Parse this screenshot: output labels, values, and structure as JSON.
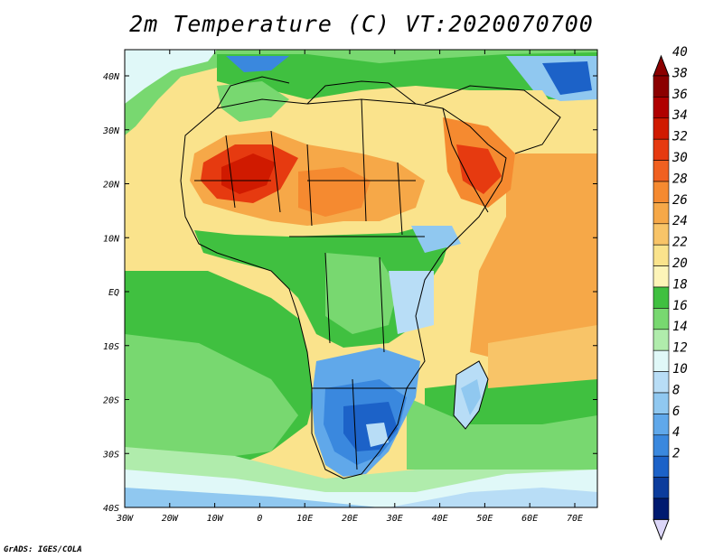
{
  "title": "2m Temperature (C) VT:2020070700",
  "credit": "GrADS: IGES/COLA",
  "map": {
    "lat_ticks": [
      "40N",
      "30N",
      "20N",
      "10N",
      "EQ",
      "10S",
      "20S",
      "30S",
      "40S"
    ],
    "lon_ticks": [
      "30W",
      "20W",
      "10W",
      "0",
      "10E",
      "20E",
      "30E",
      "40E",
      "50E",
      "60E",
      "70E"
    ],
    "lat_range": [
      -40,
      45
    ],
    "lon_range": [
      -30,
      75
    ]
  },
  "colorbar": {
    "labels": [
      "40",
      "38",
      "36",
      "34",
      "32",
      "30",
      "28",
      "26",
      "24",
      "22",
      "20",
      "18",
      "16",
      "14",
      "12",
      "10",
      "8",
      "6",
      "4",
      "2"
    ],
    "colors_top_to_bottom": [
      "#8b0000",
      "#b00000",
      "#d01a00",
      "#e63a10",
      "#f06020",
      "#f58a30",
      "#f6a848",
      "#f8c468",
      "#fae38c",
      "#fdf4b8",
      "#40c040",
      "#78d870",
      "#b0ecac",
      "#e0f8f8",
      "#b8ddf6",
      "#90c8f0",
      "#60a8ea",
      "#3a88de",
      "#1c62c8",
      "#0c3c9c",
      "#001a70"
    ],
    "arrow_top_color": "#8b0000",
    "arrow_bottom_color": "#dcd6f8"
  }
}
